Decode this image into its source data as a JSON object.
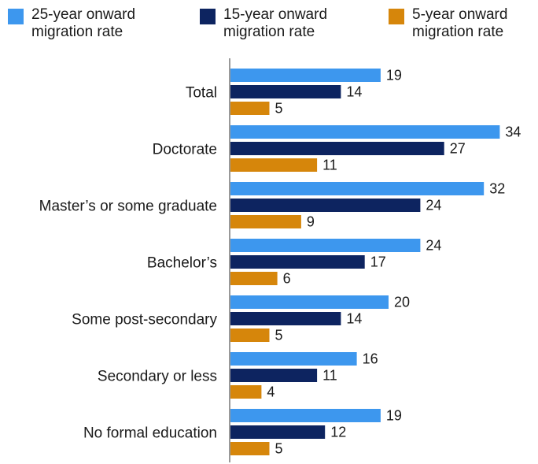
{
  "chart_data": {
    "type": "bar",
    "orientation": "horizontal",
    "categories": [
      "Total",
      "Doctorate",
      "Master’s or some graduate",
      "Bachelor’s",
      "Some post-secondary",
      "Secondary or less",
      "No formal education"
    ],
    "series": [
      {
        "name": "25-year onward migration rate",
        "color": "#3d97ee",
        "values": [
          19,
          34,
          32,
          24,
          20,
          16,
          19
        ]
      },
      {
        "name": "15-year onward migration rate",
        "color": "#0d2460",
        "values": [
          14,
          27,
          24,
          17,
          14,
          11,
          12
        ]
      },
      {
        "name": "5-year onward migration rate",
        "color": "#d6860b",
        "values": [
          5,
          11,
          9,
          6,
          5,
          4,
          5
        ]
      }
    ],
    "xlim": [
      0,
      34
    ],
    "grid": false,
    "legend_position": "top"
  }
}
